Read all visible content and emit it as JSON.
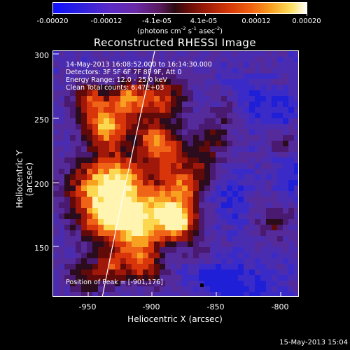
{
  "colorbar": {
    "ticks": [
      "-0.00020",
      "-0.00012",
      "-4.1e-05",
      "4.1e-05",
      "0.00012",
      "0.00020"
    ],
    "unit_prefix": "(photons cm",
    "unit_exp1": "-2",
    "unit_mid": " s",
    "unit_exp2": "-1",
    "unit_mid2": " asec",
    "unit_exp3": "-2",
    "unit_suffix": ")"
  },
  "plot": {
    "title": "Reconstructed RHESSI Image",
    "info_lines": [
      "14-May-2013 16:08:52.000 to 16:14:30.000",
      "Detectors: 3F 5F 6F 7F 8F 9F, Att 0",
      "Energy Range: 12.0 - 25.0 keV",
      "Clean     Total counts: 6.47E+03"
    ],
    "peak_label": "Position of Peak = [-901,176]",
    "xlabel": "Heliocentric X (arcsec)",
    "ylabel": "Heliocentric Y (arcsec)",
    "xticks": [
      "-950",
      "-900",
      "-850",
      "-800"
    ],
    "yticks": [
      "300",
      "250",
      "200",
      "150"
    ]
  },
  "footer": {
    "date": "15-May-2013 15:04"
  }
}
